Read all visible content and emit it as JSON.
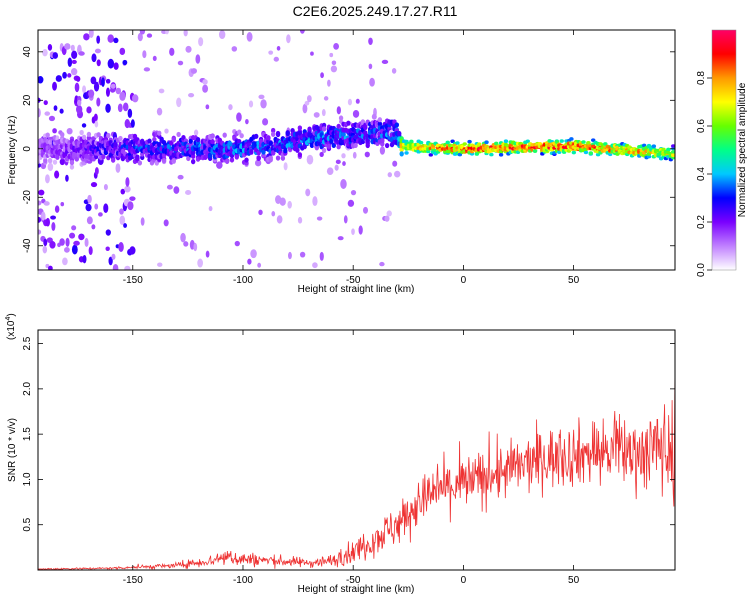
{
  "title": "C2E6.2025.249.17.27.R11",
  "colors": {
    "snr_line": "#ee3333",
    "frame": "#000000"
  },
  "chart_data": [
    {
      "type": "heatmap",
      "name": "spectrogram",
      "xlabel": "Height of straight line (km)",
      "ylabel": "Frequency (Hz)",
      "xlim": [
        -193,
        96
      ],
      "ylim": [
        -50,
        49
      ],
      "xticks": [
        -150,
        -100,
        -50,
        0,
        50
      ],
      "yticks": [
        -40,
        -20,
        0,
        20,
        40
      ],
      "colorbar": {
        "label": "Normalized spectral amplitude",
        "range": [
          0,
          1
        ],
        "ticks": [
          "0.0",
          "0.2",
          "0.4",
          "0.6",
          "0.8"
        ],
        "tick_values": [
          0.0,
          0.2,
          0.4,
          0.6,
          0.8
        ],
        "colors": [
          "#ffffff",
          "#c080ff",
          "#7a00ff",
          "#0000ff",
          "#00c8ff",
          "#00ff88",
          "#66ff00",
          "#ffff00",
          "#ff9900",
          "#ff0000",
          "#ff0066"
        ]
      },
      "signal_band": {
        "description_x_km": [
          -193,
          -150,
          -100,
          -60,
          -30,
          -28,
          0,
          50,
          96
        ],
        "center_hz": [
          0,
          0,
          0,
          5,
          7,
          1,
          0,
          1,
          -2
        ],
        "peak_amplitude": [
          0.15,
          0.3,
          0.35,
          0.35,
          0.35,
          0.7,
          0.85,
          0.85,
          0.7
        ]
      }
    },
    {
      "type": "line",
      "name": "snr",
      "xlabel": "Height of straight line (km)",
      "ylabel": "SNR (10 * v/v)",
      "exponent_label": "(x10",
      "exponent_power": "4",
      "exponent_close": ")",
      "xlim": [
        -193,
        96
      ],
      "ylim": [
        0,
        2.65
      ],
      "xticks": [
        -150,
        -100,
        -50,
        0,
        50
      ],
      "yticks": [
        "0.5",
        "1.0",
        "1.5",
        "2.0",
        "2.5"
      ],
      "ytick_values": [
        0.5,
        1.0,
        1.5,
        2.0,
        2.5
      ],
      "envelope": {
        "x": [
          -193,
          -160,
          -130,
          -115,
          -108,
          -100,
          -85,
          -70,
          -60,
          -50,
          -40,
          -30,
          -20,
          -10,
          0,
          20,
          40,
          60,
          80,
          90,
          96
        ],
        "mean": [
          0.01,
          0.02,
          0.05,
          0.1,
          0.15,
          0.12,
          0.1,
          0.08,
          0.1,
          0.2,
          0.35,
          0.5,
          0.75,
          0.9,
          0.95,
          1.1,
          1.25,
          1.3,
          1.3,
          1.35,
          1.3
        ],
        "noise": [
          0.01,
          0.01,
          0.03,
          0.06,
          0.1,
          0.08,
          0.06,
          0.05,
          0.07,
          0.12,
          0.18,
          0.22,
          0.25,
          0.28,
          0.3,
          0.3,
          0.32,
          0.35,
          0.38,
          0.5,
          0.55
        ]
      }
    }
  ]
}
